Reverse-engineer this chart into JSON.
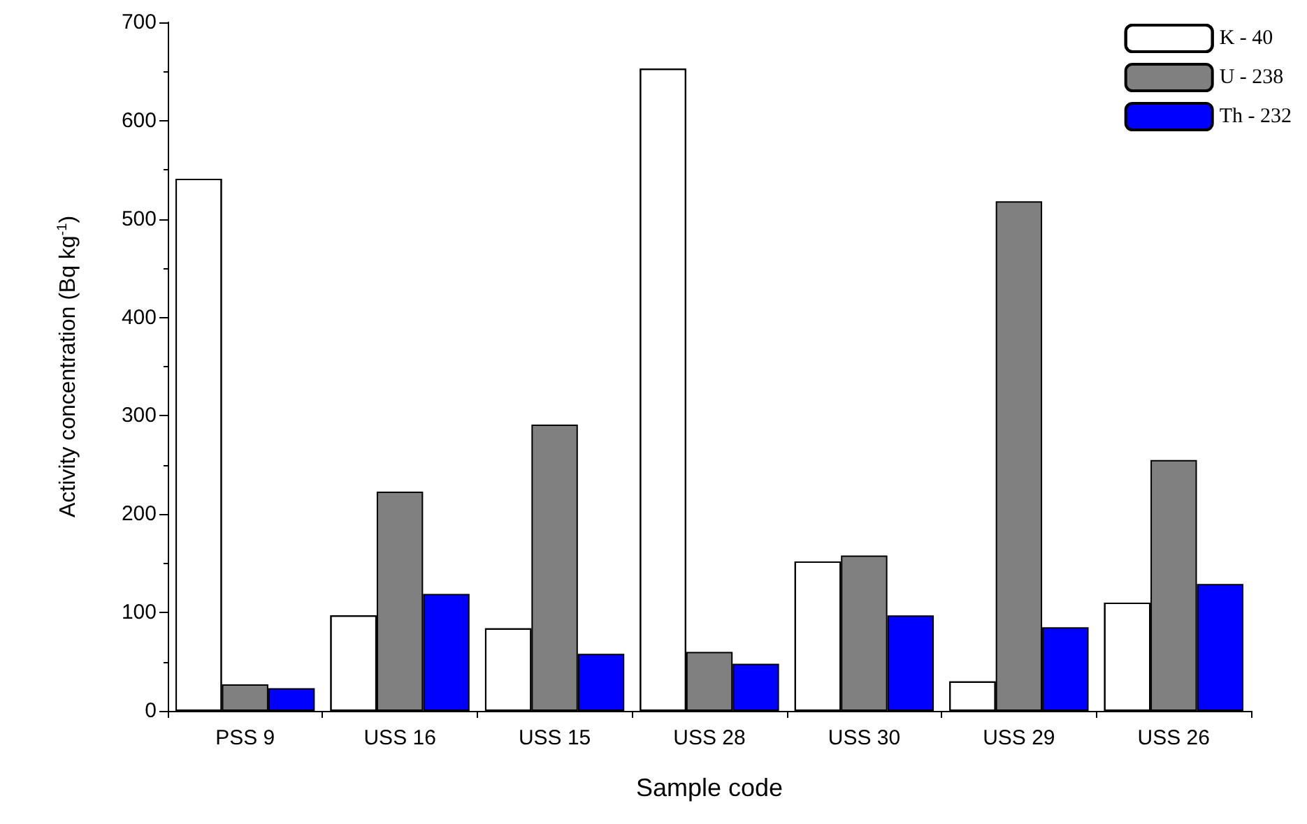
{
  "chart_data": {
    "type": "bar",
    "xlabel": "Sample code",
    "ylabel": "Activity concentration (Bq kg$^{-1}$)",
    "categories": [
      "PSS 9",
      "USS 16",
      "USS 15",
      "USS 28",
      "USS 30",
      "USS 29",
      "USS 26"
    ],
    "series": [
      {
        "name": "K - 40",
        "color": "#ffffff",
        "values": [
          541,
          97,
          84,
          653,
          152,
          30,
          110
        ]
      },
      {
        "name": "U - 238",
        "color": "#808080",
        "values": [
          27,
          223,
          291,
          60,
          158,
          518,
          255
        ]
      },
      {
        "name": "Th - 232",
        "color": "#0000ff",
        "values": [
          23,
          119,
          58,
          48,
          97,
          85,
          129
        ]
      }
    ],
    "ylim": [
      0,
      700
    ],
    "yticks": [
      0,
      100,
      200,
      300,
      400,
      500,
      600,
      700
    ],
    "grid": false,
    "legend": "top right"
  }
}
